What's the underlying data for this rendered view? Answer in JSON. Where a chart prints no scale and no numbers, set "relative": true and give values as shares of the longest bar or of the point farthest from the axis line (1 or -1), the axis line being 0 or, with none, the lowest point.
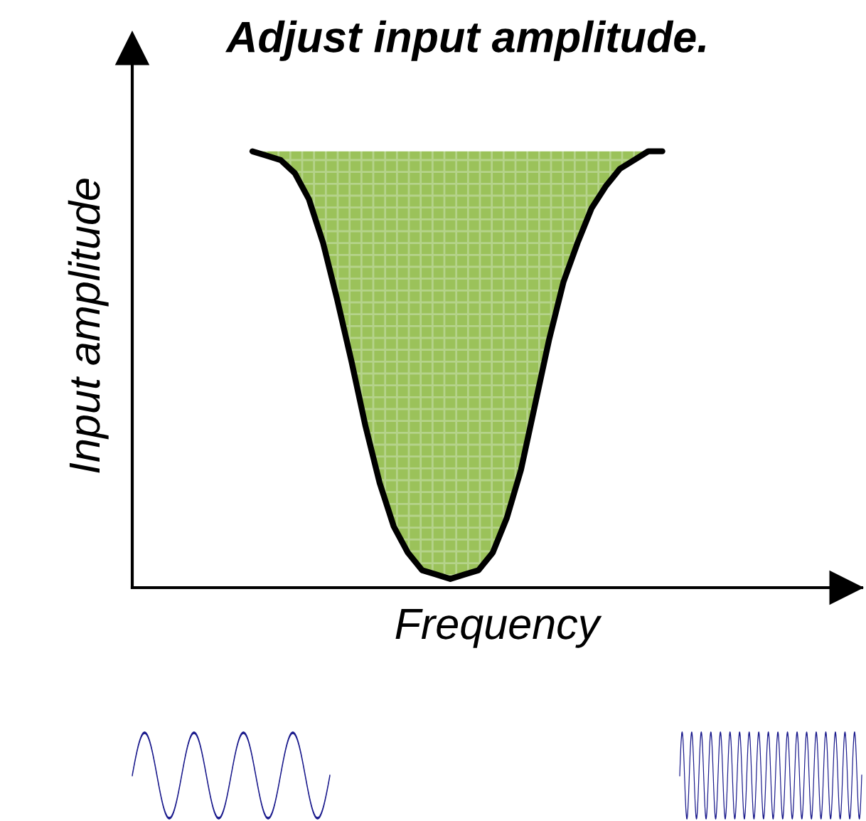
{
  "chart_data": {
    "type": "line",
    "title": "Adjust input amplitude.",
    "xlabel": "Frequency",
    "ylabel": "Input amplitude",
    "relative": true,
    "tick_labels": false,
    "grid": false,
    "legend": false,
    "marker": "none",
    "line_style": "solid",
    "categories": [
      null,
      null,
      null,
      null,
      null,
      null,
      null,
      null,
      null,
      null,
      null,
      null,
      null,
      null,
      null,
      null,
      null,
      null,
      null,
      null,
      null,
      null,
      null,
      null,
      null,
      null,
      null,
      null,
      null,
      null
    ],
    "series": [
      {
        "color": "#000000",
        "values": [
          1.0,
          0.99,
          0.98,
          0.95,
          0.89,
          0.79,
          0.66,
          0.52,
          0.37,
          0.24,
          0.14,
          0.08,
          0.04,
          0.03,
          0.02,
          0.03,
          0.04,
          0.08,
          0.16,
          0.27,
          0.42,
          0.57,
          0.7,
          0.79,
          0.87,
          0.92,
          0.96,
          0.98,
          1.0,
          1.0
        ],
        "lower": [
          1.0,
          0.99,
          0.98,
          0.95,
          0.89,
          0.79,
          0.66,
          0.52,
          0.37,
          0.24,
          0.14,
          0.08,
          0.04,
          0.03,
          0.02,
          0.03,
          0.04,
          0.08,
          0.16,
          0.27,
          0.42,
          0.57,
          0.7,
          0.79,
          0.87,
          0.92,
          0.96,
          0.98,
          1.0,
          1.0
        ],
        "upper": [
          1.0,
          1.0,
          1.0,
          1.0,
          1.0,
          1.0,
          1.0,
          1.0,
          1.0,
          1.0,
          1.0,
          1.0,
          1.0,
          1.0,
          1.0,
          1.0,
          1.0,
          1.0,
          1.0,
          1.0,
          1.0,
          1.0,
          1.0,
          1.0,
          1.0,
          1.0,
          1.0,
          1.0,
          1.0,
          1.0
        ]
      }
    ]
  }
}
